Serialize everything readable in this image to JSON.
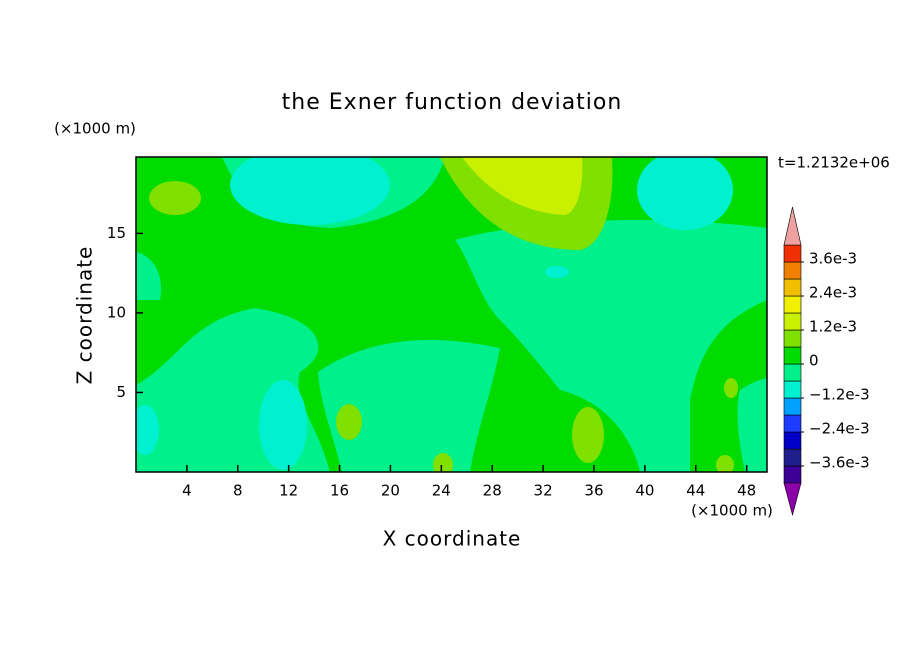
{
  "chart_data": {
    "type": "contour",
    "title": "the Exner function deviation",
    "xlabel": "X coordinate",
    "ylabel": "Z coordinate",
    "xunit": "(×1000 m)",
    "yunit": "(×1000 m)",
    "annotation": "t=1.2132e+06",
    "xlim": [
      0,
      49.6
    ],
    "ylim": [
      0,
      19.8
    ],
    "xticks": [
      4,
      8,
      12,
      16,
      20,
      24,
      28,
      32,
      36,
      40,
      44,
      48
    ],
    "yticks": [
      5,
      10,
      15
    ],
    "colorbar": {
      "clim": [
        -0.0042,
        0.0042
      ],
      "colors": [
        "#3c0096",
        "#1e1e8c",
        "#0000c8",
        "#1e3cff",
        "#00a0ff",
        "#00f0d0",
        "#00f08c",
        "#00dc00",
        "#80e000",
        "#c8f000",
        "#f0f000",
        "#f0c000",
        "#f08000",
        "#f03000"
      ],
      "under_color": "#8c00aa",
      "over_color": "#f0a0a0",
      "ticks": [
        {
          "value": 0.0036,
          "label": "3.6e-3"
        },
        {
          "value": 0.0024,
          "label": "2.4e-3"
        },
        {
          "value": 0.0012,
          "label": "1.2e-3"
        },
        0,
        {
          "value": -0.0012,
          "label": "−1.2e-3"
        },
        {
          "value": -0.0024,
          "label": "−2.4e-3"
        },
        {
          "value": -0.0036,
          "label": "−3.6e-3"
        }
      ]
    }
  }
}
